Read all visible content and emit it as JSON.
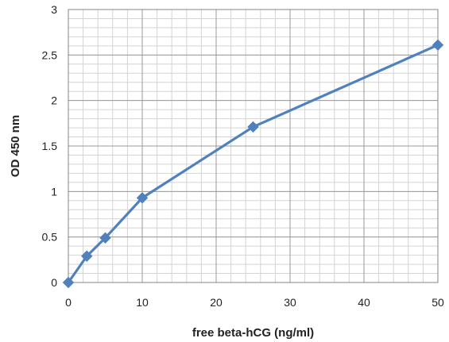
{
  "chart_data": {
    "type": "line",
    "title": "",
    "xlabel": "free beta-hCG (ng/ml)",
    "ylabel": "OD 450 nm",
    "xlim": [
      0,
      50
    ],
    "ylim": [
      0,
      3
    ],
    "x_ticks": [
      0,
      10,
      20,
      30,
      40,
      50
    ],
    "y_ticks": [
      "0",
      "0.5",
      "1",
      "1.5",
      "2",
      "2.5",
      "3"
    ],
    "grid": true,
    "minor_grid": true,
    "legend": "none",
    "series": [
      {
        "x": [
          0,
          2.5,
          5,
          10,
          25,
          50
        ],
        "y": [
          0.0,
          0.29,
          0.49,
          0.93,
          1.71,
          2.61
        ],
        "color": "#4f81bd",
        "marker": "diamond"
      }
    ]
  }
}
